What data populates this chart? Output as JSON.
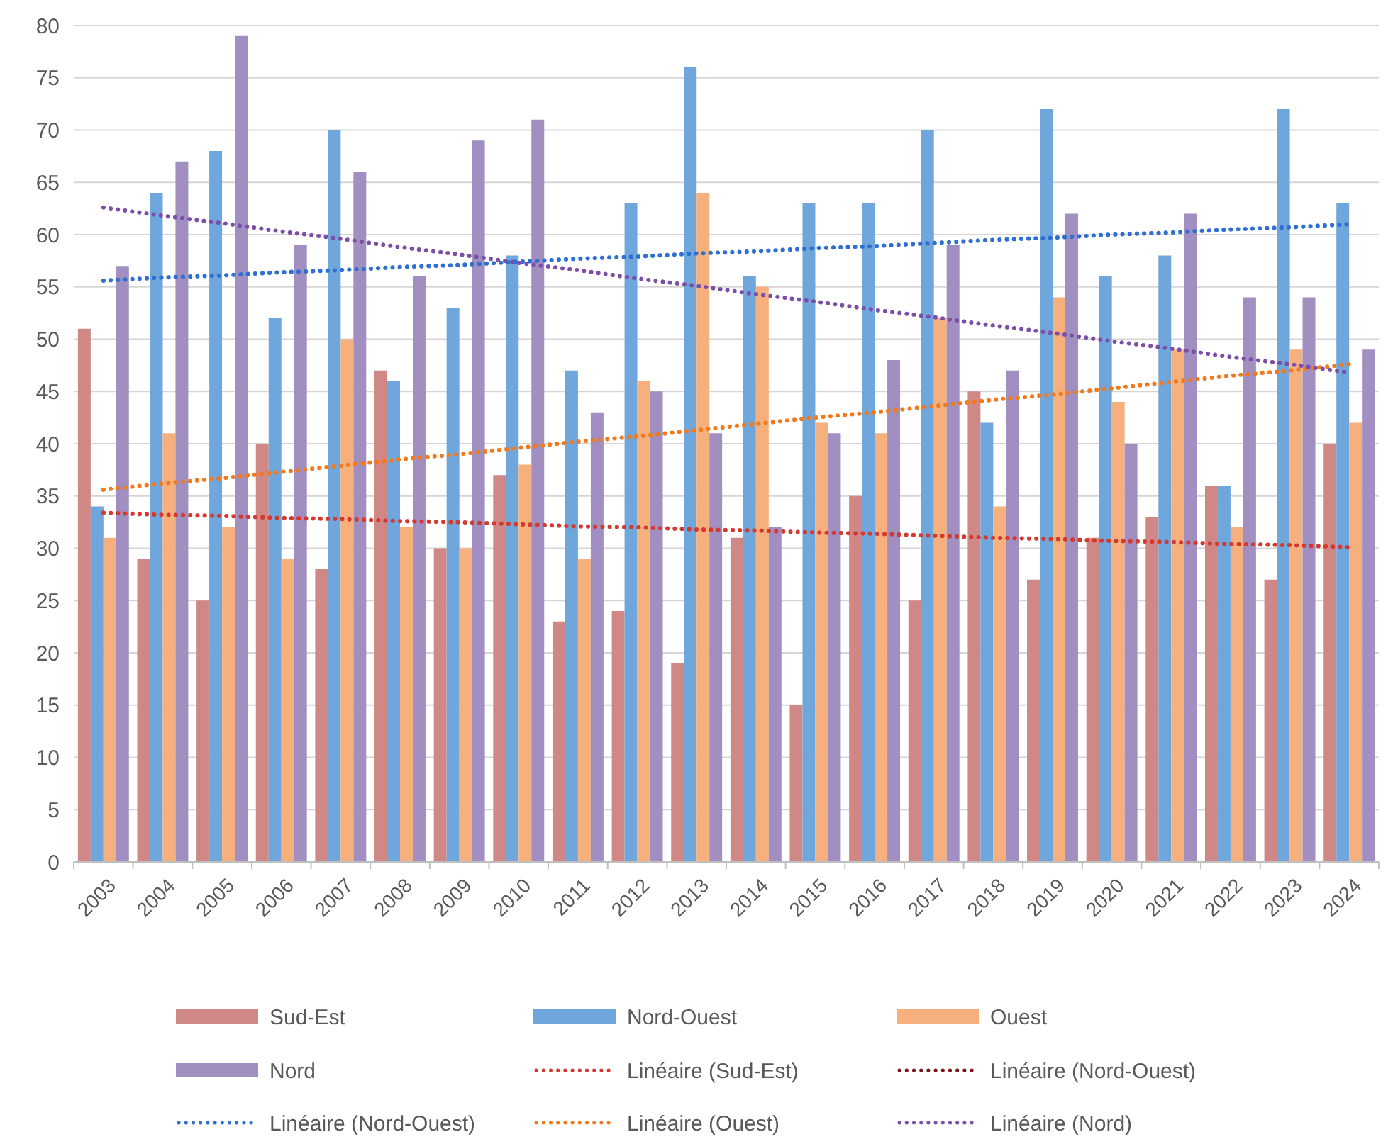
{
  "chart_data": {
    "type": "bar",
    "categories": [
      "2003",
      "2004",
      "2005",
      "2006",
      "2007",
      "2008",
      "2009",
      "2010",
      "2011",
      "2012",
      "2013",
      "2014",
      "2015",
      "2016",
      "2017",
      "2018",
      "2019",
      "2020",
      "2021",
      "2022",
      "2023",
      "2024"
    ],
    "series": [
      {
        "name": "Sud-Est",
        "color": "#cf8886",
        "values": [
          51,
          29,
          25,
          40,
          28,
          47,
          30,
          37,
          23,
          24,
          19,
          31,
          15,
          35,
          25,
          45,
          27,
          31,
          33,
          36,
          27,
          40
        ]
      },
      {
        "name": "Nord-Ouest",
        "color": "#6fa6dc",
        "values": [
          34,
          64,
          68,
          52,
          70,
          46,
          53,
          58,
          47,
          63,
          76,
          56,
          63,
          63,
          70,
          42,
          72,
          56,
          58,
          36,
          72,
          63
        ]
      },
      {
        "name": "Ouest",
        "color": "#f5b07e",
        "values": [
          31,
          41,
          32,
          29,
          50,
          32,
          30,
          38,
          29,
          46,
          64,
          55,
          42,
          41,
          52,
          34,
          54,
          44,
          49,
          32,
          49,
          42
        ]
      },
      {
        "name": "Nord",
        "color": "#a08fc0",
        "values": [
          57,
          67,
          79,
          59,
          66,
          56,
          69,
          71,
          43,
          45,
          41,
          32,
          41,
          48,
          59,
          47,
          62,
          40,
          62,
          54,
          54,
          49
        ]
      },
      {
        "name": "Linéaire (Sud-Est)",
        "type": "line",
        "line_style": "dotted",
        "marker": "none",
        "color": "#d2392f",
        "values": [
          33.4,
          33.2,
          33.1,
          32.9,
          32.8,
          32.6,
          32.5,
          32.3,
          32.1,
          32.0,
          31.8,
          31.7,
          31.5,
          31.4,
          31.2,
          31.0,
          30.9,
          30.7,
          30.6,
          30.4,
          30.3,
          30.1
        ]
      },
      {
        "name": "Linéaire (Nord-Ouest)",
        "type": "line",
        "line_style": "dotted",
        "marker": "none",
        "color": "#7a1616",
        "values": [
          null,
          null,
          null,
          null,
          null,
          null,
          null,
          null,
          null,
          null,
          null,
          null,
          null,
          null,
          null,
          null,
          null,
          null,
          null,
          null,
          null,
          null
        ]
      },
      {
        "name": "Linéaire (Nord-Ouest)",
        "type": "line",
        "line_style": "dotted",
        "marker": "none",
        "color": "#2e6fd1",
        "values": [
          55.6,
          55.9,
          56.1,
          56.4,
          56.6,
          56.9,
          57.1,
          57.4,
          57.7,
          57.9,
          58.2,
          58.4,
          58.7,
          58.9,
          59.2,
          59.5,
          59.7,
          60.0,
          60.2,
          60.5,
          60.7,
          61.0
        ]
      },
      {
        "name": "Linéaire (Ouest)",
        "type": "line",
        "line_style": "dotted",
        "marker": "none",
        "color": "#f07a1e",
        "values": [
          35.6,
          36.2,
          36.7,
          37.3,
          37.9,
          38.5,
          39.0,
          39.6,
          40.2,
          40.7,
          41.3,
          41.9,
          42.5,
          43.0,
          43.6,
          44.2,
          44.7,
          45.3,
          45.9,
          46.5,
          47.0,
          47.6
        ]
      },
      {
        "name": "Linéaire (Nord)",
        "type": "line",
        "line_style": "dotted",
        "marker": "none",
        "color": "#7b4fa8",
        "values": [
          62.6,
          61.8,
          61.1,
          60.3,
          59.6,
          58.8,
          58.1,
          57.3,
          56.6,
          55.8,
          55.1,
          54.3,
          53.6,
          52.8,
          52.1,
          51.3,
          50.6,
          49.8,
          49.1,
          48.3,
          47.6,
          46.8
        ]
      }
    ],
    "ylim": [
      0,
      80
    ],
    "yticks": [
      0,
      5,
      10,
      15,
      20,
      25,
      30,
      35,
      40,
      45,
      50,
      55,
      60,
      65,
      70,
      75,
      80
    ],
    "grid": "y",
    "legend": "bottom"
  }
}
